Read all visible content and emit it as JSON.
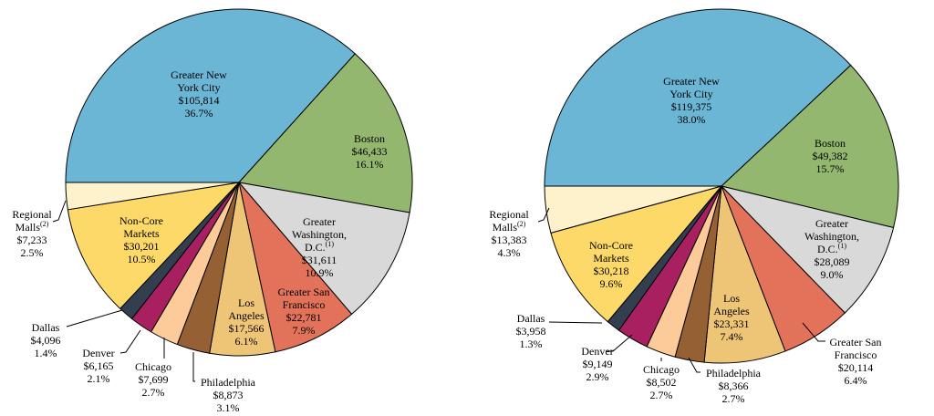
{
  "chart_data": [
    {
      "type": "pie",
      "units": "$",
      "slices": [
        {
          "name": "Greater New York City",
          "lines": [
            "Greater New",
            "York City"
          ],
          "value": "$105,814",
          "pct": "36.7%",
          "color": "#6BB5D5"
        },
        {
          "name": "Boston",
          "lines": [
            "Boston"
          ],
          "value": "$46,433",
          "pct": "16.1%",
          "color": "#93B76F"
        },
        {
          "name": "Greater Washington, D.C.",
          "lines": [
            "Greater",
            "Washington,",
            "D.C."
          ],
          "footnote": "(1)",
          "value": "$31,611",
          "pct": "10.9%",
          "color": "#D9D9D9"
        },
        {
          "name": "Greater San Francisco",
          "lines": [
            "Greater San",
            "Francisco"
          ],
          "value": "$22,781",
          "pct": "7.9%",
          "color": "#E2725A"
        },
        {
          "name": "Los Angeles",
          "lines": [
            "Los",
            "Angeles"
          ],
          "value": "$17,566",
          "pct": "6.1%",
          "color": "#EEC477"
        },
        {
          "name": "Philadelphia",
          "lines": [
            "Philadelphia"
          ],
          "value": "$8,873",
          "pct": "3.1%",
          "color": "#956134"
        },
        {
          "name": "Chicago",
          "lines": [
            "Chicago"
          ],
          "value": "$7,699",
          "pct": "2.7%",
          "color": "#FDCB9A"
        },
        {
          "name": "Denver",
          "lines": [
            "Denver"
          ],
          "value": "$6,165",
          "pct": "2.1%",
          "color": "#A8205F"
        },
        {
          "name": "Dallas",
          "lines": [
            "Dallas"
          ],
          "value": "$4,096",
          "pct": "1.4%",
          "color": "#333F4F"
        },
        {
          "name": "Non-Core Markets",
          "lines": [
            "Non-Core",
            "Markets"
          ],
          "value": "$30,201",
          "pct": "10.5%",
          "color": "#FDD96A"
        },
        {
          "name": "Regional Malls",
          "lines": [
            "Regional",
            "Malls"
          ],
          "footnote": "(2)",
          "value": "$7,233",
          "pct": "2.5%",
          "color": "#FEF2CC"
        }
      ]
    },
    {
      "type": "pie",
      "units": "$",
      "slices": [
        {
          "name": "Greater New York City",
          "lines": [
            "Greater New",
            "York City"
          ],
          "value": "$119,375",
          "pct": "38.0%",
          "color": "#6BB5D5"
        },
        {
          "name": "Boston",
          "lines": [
            "Boston"
          ],
          "value": "$49,382",
          "pct": "15.7%",
          "color": "#93B76F"
        },
        {
          "name": "Greater Washington, D.C.",
          "lines": [
            "Greater",
            "Washington,",
            "D.C."
          ],
          "footnote": "(1)",
          "value": "$28,089",
          "pct": "9.0%",
          "color": "#D9D9D9"
        },
        {
          "name": "Greater San Francisco",
          "lines": [
            "Greater San",
            "Francisco"
          ],
          "value": "$20,114",
          "pct": "6.4%",
          "color": "#E2725A"
        },
        {
          "name": "Los Angeles",
          "lines": [
            "Los",
            "Angeles"
          ],
          "value": "$23,331",
          "pct": "7.4%",
          "color": "#EEC477"
        },
        {
          "name": "Philadelphia",
          "lines": [
            "Philadelphia"
          ],
          "value": "$8,366",
          "pct": "2.7%",
          "color": "#956134"
        },
        {
          "name": "Chicago",
          "lines": [
            "Chicago"
          ],
          "value": "$8,502",
          "pct": "2.7%",
          "color": "#FDCB9A"
        },
        {
          "name": "Denver",
          "lines": [
            "Denver"
          ],
          "value": "$9,149",
          "pct": "2.9%",
          "color": "#A8205F"
        },
        {
          "name": "Dallas",
          "lines": [
            "Dallas"
          ],
          "value": "$3,958",
          "pct": "1.3%",
          "color": "#333F4F"
        },
        {
          "name": "Non-Core Markets",
          "lines": [
            "Non-Core",
            "Markets"
          ],
          "value": "$30,218",
          "pct": "9.6%",
          "color": "#FDD96A"
        },
        {
          "name": "Regional Malls",
          "lines": [
            "Regional",
            "Malls"
          ],
          "footnote": "(2)",
          "value": "$13,383",
          "pct": "4.3%",
          "color": "#FEF2CC"
        }
      ]
    }
  ]
}
